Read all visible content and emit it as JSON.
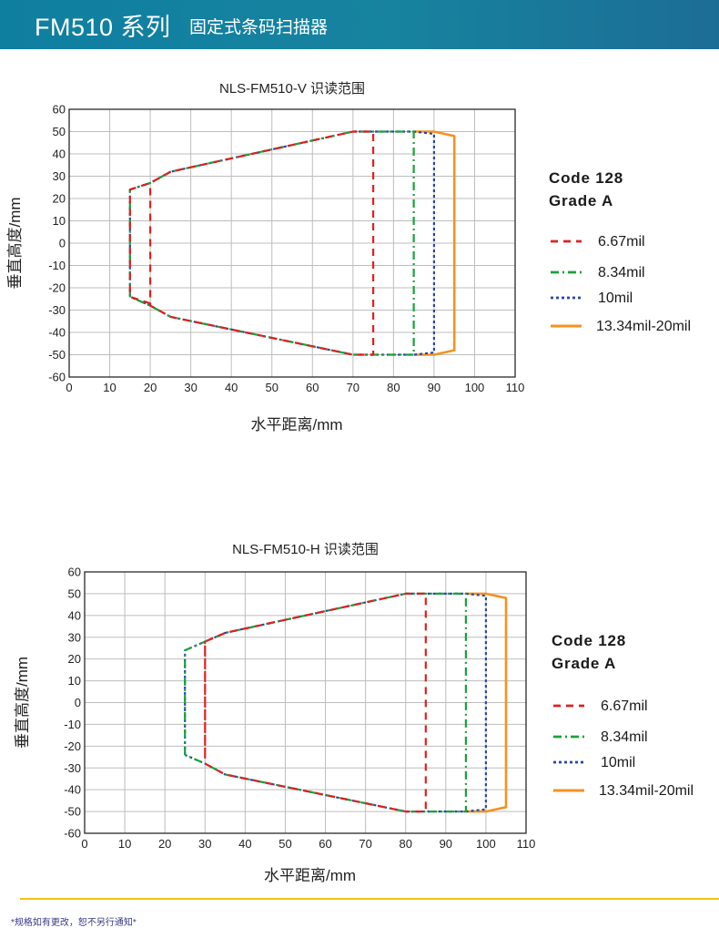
{
  "header": {
    "title_main": "FM510 系列",
    "title_sub": "固定式条码扫描器"
  },
  "colors": {
    "header_bg": "#17839f",
    "red": "#e02020",
    "green": "#1aa23a",
    "blue": "#2a46a8",
    "orange": "#f5921e",
    "footer_line": "#f2c21a"
  },
  "chart_data": [
    {
      "type": "line",
      "title": "NLS-FM510-V 识读范围",
      "xlabel": "水平距离/mm",
      "ylabel": "垂直高度/mm",
      "xlim": [
        0,
        110
      ],
      "ylim": [
        -60,
        60
      ],
      "xticks": [
        0,
        10,
        20,
        30,
        40,
        50,
        60,
        70,
        80,
        90,
        100,
        110
      ],
      "yticks": [
        60,
        50,
        40,
        30,
        20,
        10,
        0,
        -10,
        -20,
        -30,
        -40,
        -50,
        -60
      ],
      "grid": true,
      "legend_position": "right",
      "legend_title": [
        "Code 128",
        "Grade A"
      ],
      "series": [
        {
          "name": "6.67mil",
          "color": "#e02020",
          "style": "dash",
          "x": [
            20,
            15,
            15,
            20,
            25,
            70,
            75,
            75,
            70,
            25,
            20,
            20
          ],
          "y": [
            -27,
            -24,
            24,
            27,
            32,
            50,
            50,
            -50,
            -50,
            -33,
            -28,
            27
          ]
        },
        {
          "name": "8.34mil",
          "color": "#1aa23a",
          "style": "dashdot",
          "x": [
            15,
            15,
            20,
            25,
            70,
            85,
            85,
            70,
            25,
            20,
            15
          ],
          "y": [
            -24,
            24,
            27,
            32,
            50,
            50,
            -50,
            -50,
            -33,
            -28,
            -24
          ]
        },
        {
          "name": "10mil",
          "color": "#2a46a8",
          "style": "dot",
          "x": [
            15,
            15,
            20,
            25,
            70,
            85,
            90,
            90,
            85,
            70,
            25,
            20,
            15
          ],
          "y": [
            -24,
            24,
            27,
            32,
            50,
            50,
            49,
            -49,
            -50,
            -50,
            -33,
            -28,
            -24
          ]
        },
        {
          "name": "13.34mil-20mil",
          "color": "#f5921e",
          "style": "solid",
          "x": [
            85,
            90,
            95,
            95,
            90,
            85
          ],
          "y": [
            50,
            50,
            48,
            -48,
            -50,
            -50
          ]
        }
      ]
    },
    {
      "type": "line",
      "title": "NLS-FM510-H 识读范围",
      "xlabel": "水平距离/mm",
      "ylabel": "垂直高度/mm",
      "xlim": [
        0,
        110
      ],
      "ylim": [
        -60,
        60
      ],
      "xticks": [
        0,
        10,
        20,
        30,
        40,
        50,
        60,
        70,
        80,
        90,
        100,
        110
      ],
      "yticks": [
        60,
        50,
        40,
        30,
        20,
        10,
        0,
        -10,
        -20,
        -30,
        -40,
        -50,
        -60
      ],
      "grid": true,
      "legend_position": "right",
      "legend_title": [
        "Code 128",
        "Grade A"
      ],
      "series": [
        {
          "name": "6.67mil",
          "color": "#e02020",
          "style": "dash",
          "x": [
            30,
            30,
            35,
            80,
            85,
            85,
            80,
            35,
            30,
            30
          ],
          "y": [
            -24,
            28,
            32,
            50,
            50,
            -50,
            -50,
            -33,
            -28,
            28
          ]
        },
        {
          "name": "8.34mil",
          "color": "#1aa23a",
          "style": "dashdot",
          "x": [
            25,
            25,
            30,
            35,
            80,
            95,
            95,
            80,
            35,
            30,
            25
          ],
          "y": [
            -24,
            24,
            28,
            32,
            50,
            50,
            -50,
            -50,
            -33,
            -28,
            -24
          ]
        },
        {
          "name": "10mil",
          "color": "#2a46a8",
          "style": "dot",
          "x": [
            25,
            25,
            30,
            35,
            80,
            95,
            100,
            100,
            95,
            80,
            35,
            30,
            25
          ],
          "y": [
            -24,
            24,
            28,
            32,
            50,
            50,
            49,
            -49,
            -50,
            -50,
            -33,
            -28,
            -24
          ]
        },
        {
          "name": "13.34mil-20mil",
          "color": "#f5921e",
          "style": "solid",
          "x": [
            95,
            100,
            105,
            105,
            100,
            95
          ],
          "y": [
            50,
            50,
            48,
            -48,
            -50,
            -50
          ]
        }
      ]
    }
  ],
  "footer": {
    "note": "*规格如有更改，恕不另行通知*"
  }
}
